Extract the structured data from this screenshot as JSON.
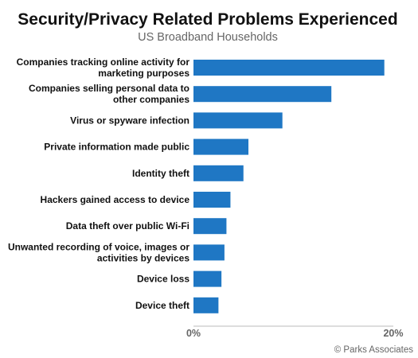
{
  "chart_data": {
    "type": "bar",
    "orientation": "horizontal",
    "title": "Security/Privacy Related Problems Experienced",
    "subtitle": "US Broadband Households",
    "categories": [
      [
        "Companies tracking online activity for",
        "marketing purposes"
      ],
      [
        "Companies selling personal data to",
        "other companies"
      ],
      [
        "Virus or spyware infection"
      ],
      [
        "Private information made public"
      ],
      [
        "Identity theft"
      ],
      [
        "Hackers gained access to device"
      ],
      [
        "Data theft over public Wi-Fi"
      ],
      [
        "Unwanted recording of voice, images or",
        "activities by devices"
      ],
      [
        "Device loss"
      ],
      [
        "Device theft"
      ]
    ],
    "values": [
      19.1,
      13.8,
      8.9,
      5.5,
      5.0,
      3.7,
      3.3,
      3.1,
      2.8,
      2.5
    ],
    "xlim": [
      0,
      20
    ],
    "x_ticks": [
      "0%",
      "20%"
    ],
    "bar_color": "#1f77c4",
    "grid": false,
    "credit": "© Parks Associates"
  }
}
